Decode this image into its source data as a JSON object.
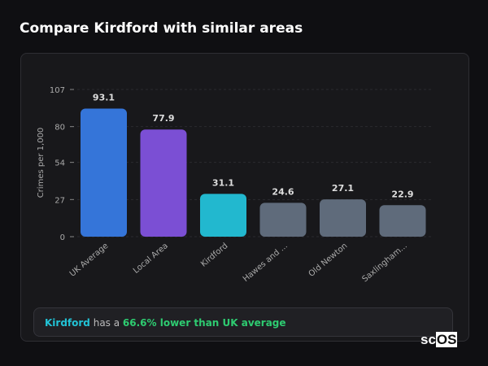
{
  "title": "Compare Kirdford with similar areas",
  "chart_data": {
    "type": "bar",
    "ylabel": "Crimes per 1,000",
    "ylim": [
      0,
      107
    ],
    "yticks": [
      0,
      27,
      54,
      80,
      107
    ],
    "grid": true,
    "categories": [
      "UK Average",
      "Local Area",
      "Kirdford",
      "Hawes and ...",
      "Old Newton",
      "Saxlingham..."
    ],
    "values": [
      93.1,
      77.9,
      31.1,
      24.6,
      27.1,
      22.9
    ],
    "colors": [
      "#3575d9",
      "#7b4fd4",
      "#22b8cf",
      "#5f6b7b",
      "#5f6b7b",
      "#5f6b7b"
    ]
  },
  "footer": {
    "area": "Kirdford",
    "middle": " has a ",
    "stat": "66.6% lower than UK average"
  },
  "logo": {
    "text": "scOS"
  }
}
